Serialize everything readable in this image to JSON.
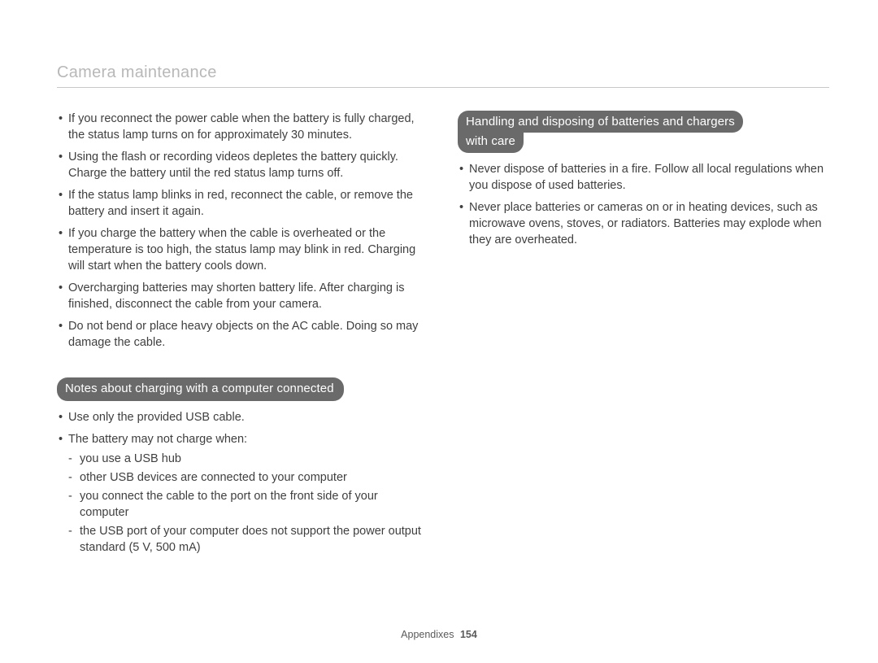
{
  "header": {
    "title": "Camera maintenance"
  },
  "left": {
    "bullets": [
      "If you reconnect the power cable when the battery is fully charged, the status lamp turns on for approximately 30 minutes.",
      "Using the flash or recording videos depletes the battery quickly. Charge the battery until the red status lamp turns off.",
      "If the status lamp blinks in red, reconnect the cable, or remove the battery and insert it again.",
      "If you charge the battery when the cable is overheated or the temperature is too high, the status lamp may blink in red. Charging will start when the battery cools down.",
      "Overcharging batteries may shorten battery life. After charging is finished, disconnect the cable from your camera.",
      "Do not bend or place heavy objects on the AC cable. Doing so may damage the cable."
    ],
    "heading2": "Notes about charging with a computer connected",
    "bullets2": [
      "Use only the provided USB cable.",
      "The battery may not charge when:"
    ],
    "dashes": [
      "you use a USB hub",
      "other USB devices are connected to your computer",
      "you connect the cable to the port on the front side of your computer",
      "the USB port of your computer does not support the power output standard (5 V, 500 mA)"
    ]
  },
  "right": {
    "heading_line1": "Handling and disposing of batteries and chargers",
    "heading_line2": "with care",
    "bullets": [
      "Never dispose of batteries in a fire. Follow all local regulations when you dispose of used batteries.",
      "Never place batteries or cameras on or in heating devices, such as microwave ovens, stoves, or radiators. Batteries may explode when they are overheated."
    ]
  },
  "footer": {
    "section": "Appendixes",
    "page": "154"
  },
  "style": {
    "pill_bg": "#6a6a6a",
    "pill_fg": "#ffffff",
    "title_color": "#b8b8b8",
    "text_color": "#3f3f3f",
    "rule_color": "#c8c8c8",
    "body_fontsize": 14.5,
    "title_fontsize": 20
  }
}
